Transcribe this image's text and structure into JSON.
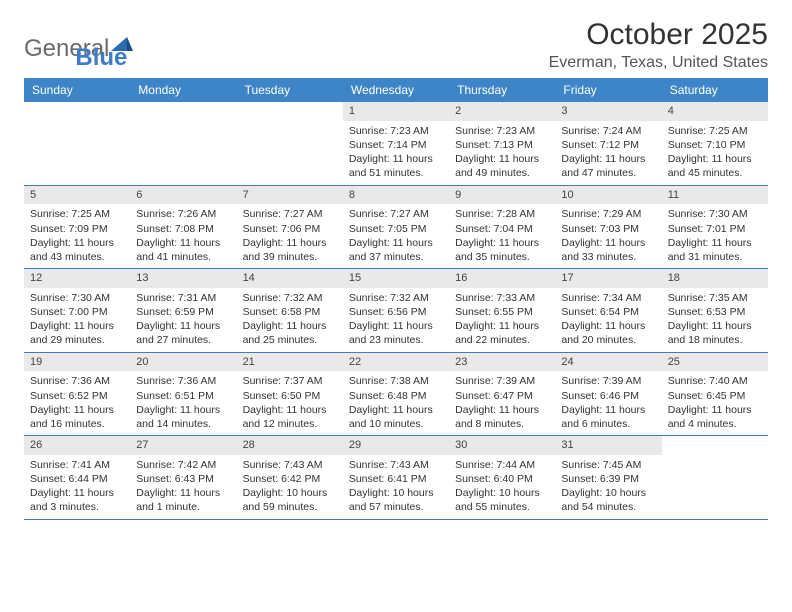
{
  "logo": {
    "general": "General",
    "blue": "Blue"
  },
  "title": "October 2025",
  "location": "Everman, Texas, United States",
  "header_bg": "#3d85c6",
  "border_color": "#3d7cc9",
  "daynum_bg": "#e9e9e9",
  "weekdays": [
    "Sunday",
    "Monday",
    "Tuesday",
    "Wednesday",
    "Thursday",
    "Friday",
    "Saturday"
  ],
  "weeks": [
    [
      {
        "empty": true
      },
      {
        "empty": true
      },
      {
        "empty": true
      },
      {
        "day": "1",
        "sunrise": "Sunrise: 7:23 AM",
        "sunset": "Sunset: 7:14 PM",
        "daylight": "Daylight: 11 hours and 51 minutes."
      },
      {
        "day": "2",
        "sunrise": "Sunrise: 7:23 AM",
        "sunset": "Sunset: 7:13 PM",
        "daylight": "Daylight: 11 hours and 49 minutes."
      },
      {
        "day": "3",
        "sunrise": "Sunrise: 7:24 AM",
        "sunset": "Sunset: 7:12 PM",
        "daylight": "Daylight: 11 hours and 47 minutes."
      },
      {
        "day": "4",
        "sunrise": "Sunrise: 7:25 AM",
        "sunset": "Sunset: 7:10 PM",
        "daylight": "Daylight: 11 hours and 45 minutes."
      }
    ],
    [
      {
        "day": "5",
        "sunrise": "Sunrise: 7:25 AM",
        "sunset": "Sunset: 7:09 PM",
        "daylight": "Daylight: 11 hours and 43 minutes."
      },
      {
        "day": "6",
        "sunrise": "Sunrise: 7:26 AM",
        "sunset": "Sunset: 7:08 PM",
        "daylight": "Daylight: 11 hours and 41 minutes."
      },
      {
        "day": "7",
        "sunrise": "Sunrise: 7:27 AM",
        "sunset": "Sunset: 7:06 PM",
        "daylight": "Daylight: 11 hours and 39 minutes."
      },
      {
        "day": "8",
        "sunrise": "Sunrise: 7:27 AM",
        "sunset": "Sunset: 7:05 PM",
        "daylight": "Daylight: 11 hours and 37 minutes."
      },
      {
        "day": "9",
        "sunrise": "Sunrise: 7:28 AM",
        "sunset": "Sunset: 7:04 PM",
        "daylight": "Daylight: 11 hours and 35 minutes."
      },
      {
        "day": "10",
        "sunrise": "Sunrise: 7:29 AM",
        "sunset": "Sunset: 7:03 PM",
        "daylight": "Daylight: 11 hours and 33 minutes."
      },
      {
        "day": "11",
        "sunrise": "Sunrise: 7:30 AM",
        "sunset": "Sunset: 7:01 PM",
        "daylight": "Daylight: 11 hours and 31 minutes."
      }
    ],
    [
      {
        "day": "12",
        "sunrise": "Sunrise: 7:30 AM",
        "sunset": "Sunset: 7:00 PM",
        "daylight": "Daylight: 11 hours and 29 minutes."
      },
      {
        "day": "13",
        "sunrise": "Sunrise: 7:31 AM",
        "sunset": "Sunset: 6:59 PM",
        "daylight": "Daylight: 11 hours and 27 minutes."
      },
      {
        "day": "14",
        "sunrise": "Sunrise: 7:32 AM",
        "sunset": "Sunset: 6:58 PM",
        "daylight": "Daylight: 11 hours and 25 minutes."
      },
      {
        "day": "15",
        "sunrise": "Sunrise: 7:32 AM",
        "sunset": "Sunset: 6:56 PM",
        "daylight": "Daylight: 11 hours and 23 minutes."
      },
      {
        "day": "16",
        "sunrise": "Sunrise: 7:33 AM",
        "sunset": "Sunset: 6:55 PM",
        "daylight": "Daylight: 11 hours and 22 minutes."
      },
      {
        "day": "17",
        "sunrise": "Sunrise: 7:34 AM",
        "sunset": "Sunset: 6:54 PM",
        "daylight": "Daylight: 11 hours and 20 minutes."
      },
      {
        "day": "18",
        "sunrise": "Sunrise: 7:35 AM",
        "sunset": "Sunset: 6:53 PM",
        "daylight": "Daylight: 11 hours and 18 minutes."
      }
    ],
    [
      {
        "day": "19",
        "sunrise": "Sunrise: 7:36 AM",
        "sunset": "Sunset: 6:52 PM",
        "daylight": "Daylight: 11 hours and 16 minutes."
      },
      {
        "day": "20",
        "sunrise": "Sunrise: 7:36 AM",
        "sunset": "Sunset: 6:51 PM",
        "daylight": "Daylight: 11 hours and 14 minutes."
      },
      {
        "day": "21",
        "sunrise": "Sunrise: 7:37 AM",
        "sunset": "Sunset: 6:50 PM",
        "daylight": "Daylight: 11 hours and 12 minutes."
      },
      {
        "day": "22",
        "sunrise": "Sunrise: 7:38 AM",
        "sunset": "Sunset: 6:48 PM",
        "daylight": "Daylight: 11 hours and 10 minutes."
      },
      {
        "day": "23",
        "sunrise": "Sunrise: 7:39 AM",
        "sunset": "Sunset: 6:47 PM",
        "daylight": "Daylight: 11 hours and 8 minutes."
      },
      {
        "day": "24",
        "sunrise": "Sunrise: 7:39 AM",
        "sunset": "Sunset: 6:46 PM",
        "daylight": "Daylight: 11 hours and 6 minutes."
      },
      {
        "day": "25",
        "sunrise": "Sunrise: 7:40 AM",
        "sunset": "Sunset: 6:45 PM",
        "daylight": "Daylight: 11 hours and 4 minutes."
      }
    ],
    [
      {
        "day": "26",
        "sunrise": "Sunrise: 7:41 AM",
        "sunset": "Sunset: 6:44 PM",
        "daylight": "Daylight: 11 hours and 3 minutes."
      },
      {
        "day": "27",
        "sunrise": "Sunrise: 7:42 AM",
        "sunset": "Sunset: 6:43 PM",
        "daylight": "Daylight: 11 hours and 1 minute."
      },
      {
        "day": "28",
        "sunrise": "Sunrise: 7:43 AM",
        "sunset": "Sunset: 6:42 PM",
        "daylight": "Daylight: 10 hours and 59 minutes."
      },
      {
        "day": "29",
        "sunrise": "Sunrise: 7:43 AM",
        "sunset": "Sunset: 6:41 PM",
        "daylight": "Daylight: 10 hours and 57 minutes."
      },
      {
        "day": "30",
        "sunrise": "Sunrise: 7:44 AM",
        "sunset": "Sunset: 6:40 PM",
        "daylight": "Daylight: 10 hours and 55 minutes."
      },
      {
        "day": "31",
        "sunrise": "Sunrise: 7:45 AM",
        "sunset": "Sunset: 6:39 PM",
        "daylight": "Daylight: 10 hours and 54 minutes."
      },
      {
        "empty": true
      }
    ]
  ]
}
